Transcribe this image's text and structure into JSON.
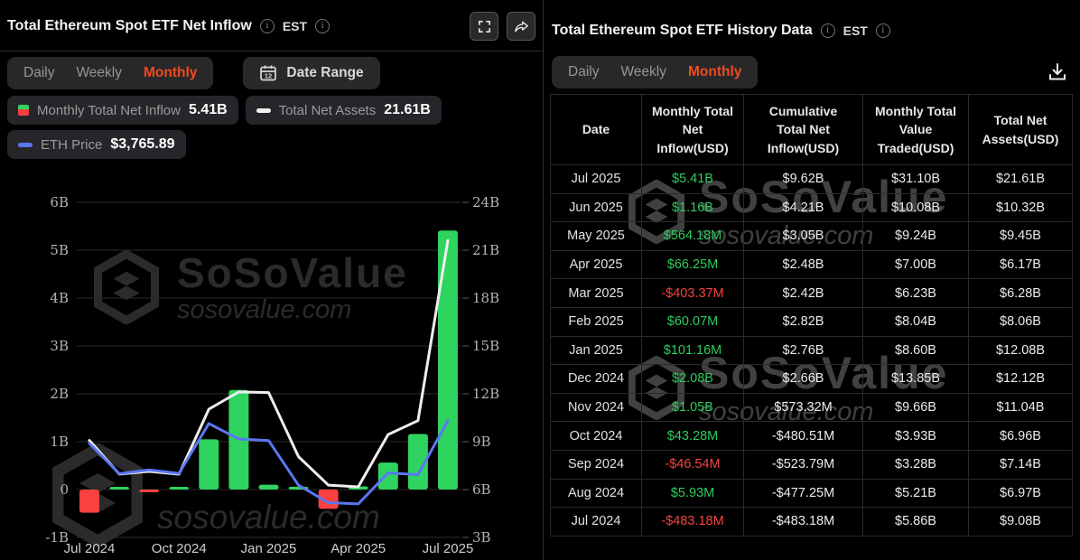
{
  "brand": {
    "name": "SoSoValue",
    "domain": "sosovalue.com"
  },
  "colors": {
    "accent": "#f04a1d",
    "inflow_positive": "#2fd35f",
    "inflow_negative": "#fb4040",
    "net_assets_line": "#eeeeee",
    "eth_price_line": "#5b76f3",
    "grid": "#2b2b2b",
    "background": "#000000"
  },
  "left_panel": {
    "title": "Total Ethereum Spot ETF Net Inflow",
    "timezone": "EST",
    "tabs": [
      "Daily",
      "Weekly",
      "Monthly"
    ],
    "active_tab": "Monthly",
    "date_range": {
      "label": "Date Range",
      "calendar_day": "12"
    },
    "legend": [
      {
        "label": "Monthly Total Net Inflow",
        "value": "5.41B"
      },
      {
        "label": "Total Net Assets",
        "value": "21.61B"
      },
      {
        "label": "ETH Price",
        "value": "$3,765.89"
      }
    ]
  },
  "right_panel": {
    "title": "Total Ethereum Spot ETF History Data",
    "timezone": "EST",
    "tabs": [
      "Daily",
      "Weekly",
      "Monthly"
    ],
    "active_tab": "Monthly",
    "table": {
      "headers": [
        "Date",
        "Monthly Total\nNet\nInflow(USD)",
        "Cumulative\nTotal Net\nInflow(USD)",
        "Monthly Total\nValue\nTraded(USD)",
        "Total Net\nAssets(USD)"
      ],
      "rows": [
        {
          "date": "Jul 2025",
          "inflow": "$5.41B",
          "inflow_sign": "pos",
          "cumulative": "$9.62B",
          "traded": "$31.10B",
          "assets": "$21.61B"
        },
        {
          "date": "Jun 2025",
          "inflow": "$1.16B",
          "inflow_sign": "pos",
          "cumulative": "$4.21B",
          "traded": "$10.08B",
          "assets": "$10.32B"
        },
        {
          "date": "May 2025",
          "inflow": "$564.18M",
          "inflow_sign": "pos",
          "cumulative": "$3.05B",
          "traded": "$9.24B",
          "assets": "$9.45B"
        },
        {
          "date": "Apr 2025",
          "inflow": "$66.25M",
          "inflow_sign": "pos",
          "cumulative": "$2.48B",
          "traded": "$7.00B",
          "assets": "$6.17B"
        },
        {
          "date": "Mar 2025",
          "inflow": "-$403.37M",
          "inflow_sign": "neg",
          "cumulative": "$2.42B",
          "traded": "$6.23B",
          "assets": "$6.28B"
        },
        {
          "date": "Feb 2025",
          "inflow": "$60.07M",
          "inflow_sign": "pos",
          "cumulative": "$2.82B",
          "traded": "$8.04B",
          "assets": "$8.06B"
        },
        {
          "date": "Jan 2025",
          "inflow": "$101.16M",
          "inflow_sign": "pos",
          "cumulative": "$2.76B",
          "traded": "$8.60B",
          "assets": "$12.08B"
        },
        {
          "date": "Dec 2024",
          "inflow": "$2.08B",
          "inflow_sign": "pos",
          "cumulative": "$2.66B",
          "traded": "$13.85B",
          "assets": "$12.12B"
        },
        {
          "date": "Nov 2024",
          "inflow": "$1.05B",
          "inflow_sign": "pos",
          "cumulative": "$573.32M",
          "traded": "$9.66B",
          "assets": "$11.04B"
        },
        {
          "date": "Oct 2024",
          "inflow": "$43.28M",
          "inflow_sign": "pos",
          "cumulative": "-$480.51M",
          "traded": "$3.93B",
          "assets": "$6.96B"
        },
        {
          "date": "Sep 2024",
          "inflow": "-$46.54M",
          "inflow_sign": "neg",
          "cumulative": "-$523.79M",
          "traded": "$3.28B",
          "assets": "$7.14B"
        },
        {
          "date": "Aug 2024",
          "inflow": "$5.93M",
          "inflow_sign": "pos",
          "cumulative": "-$477.25M",
          "traded": "$5.21B",
          "assets": "$6.97B"
        },
        {
          "date": "Jul 2024",
          "inflow": "-$483.18M",
          "inflow_sign": "neg",
          "cumulative": "-$483.18M",
          "traded": "$5.86B",
          "assets": "$9.08B"
        }
      ]
    }
  },
  "chart_data": {
    "type": "bar",
    "title": "Total Ethereum Spot ETF Net Inflow (Monthly)",
    "categories": [
      "Jul 2024",
      "Aug 2024",
      "Sep 2024",
      "Oct 2024",
      "Nov 2024",
      "Dec 2024",
      "Jan 2025",
      "Feb 2025",
      "Mar 2025",
      "Apr 2025",
      "May 2025",
      "Jun 2025",
      "Jul 2025"
    ],
    "series": [
      {
        "name": "Monthly Total Net Inflow",
        "type": "bar",
        "axis": "left",
        "unit": "B USD",
        "values": [
          -0.48318,
          0.00593,
          -0.04654,
          0.04328,
          1.05,
          2.08,
          0.10116,
          0.06007,
          -0.40337,
          0.06625,
          0.56418,
          1.16,
          5.41
        ]
      },
      {
        "name": "Total Net Assets",
        "type": "line",
        "axis": "right",
        "unit": "B USD",
        "values": [
          9.08,
          6.97,
          7.14,
          6.96,
          11.04,
          12.12,
          12.08,
          8.06,
          6.28,
          6.17,
          9.45,
          10.32,
          21.61
        ]
      },
      {
        "name": "ETH Price",
        "type": "line",
        "axis": "hidden",
        "unit": "USD",
        "values": [
          3233,
          2513,
          2602,
          2518,
          3703,
          3336,
          3300,
          2237,
          1823,
          1794,
          2530,
          2488,
          3766
        ]
      }
    ],
    "left_axis": {
      "min": -1,
      "max": 6,
      "step": 1,
      "ticks": [
        "-1B",
        "0",
        "1B",
        "2B",
        "3B",
        "4B",
        "5B",
        "6B"
      ]
    },
    "right_axis": {
      "min": 3,
      "max": 24,
      "step": 3,
      "ticks": [
        "3B",
        "6B",
        "9B",
        "12B",
        "15B",
        "18B",
        "21B",
        "24B"
      ]
    },
    "eth_axis": {
      "min": 1794,
      "max": 3766,
      "maps_to_left": [
        -0.3,
        1.435
      ]
    },
    "x_ticks": [
      "Jul 2024",
      "Oct 2024",
      "Jan 2025",
      "Apr 2025",
      "Jul 2025"
    ],
    "grid": true,
    "legend_position": "top"
  }
}
